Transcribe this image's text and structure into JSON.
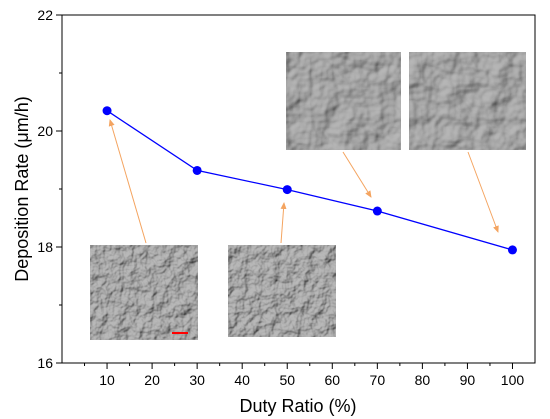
{
  "chart_data": {
    "type": "line",
    "xlabel": "Duty Ratio (%)",
    "ylabel": "Deposition Rate (μm/h)",
    "xlim": [
      0,
      105
    ],
    "ylim": [
      16,
      22
    ],
    "xticks": [
      10,
      20,
      30,
      40,
      50,
      60,
      70,
      80,
      90,
      100
    ],
    "yticks": [
      16,
      18,
      20,
      22
    ],
    "grid": false,
    "series": [
      {
        "x": [
          10,
          30,
          50,
          70,
          100
        ],
        "y": [
          20.35,
          19.32,
          18.99,
          18.62,
          17.95
        ],
        "color": "#0000ff",
        "marker": "circle"
      }
    ],
    "insets": [
      {
        "kind": "sem-micrograph",
        "texture": "fine-grains",
        "points_to_x": 10
      },
      {
        "kind": "sem-micrograph",
        "texture": "fine-grains",
        "points_to_x": 50
      },
      {
        "kind": "sem-micrograph",
        "texture": "coarse-cracked",
        "points_to_x": 70
      },
      {
        "kind": "sem-micrograph",
        "texture": "coarse-cracked",
        "points_to_x": 100
      }
    ],
    "arrow_color": "#f4a460",
    "scale_bar_color": "#ff0000"
  }
}
